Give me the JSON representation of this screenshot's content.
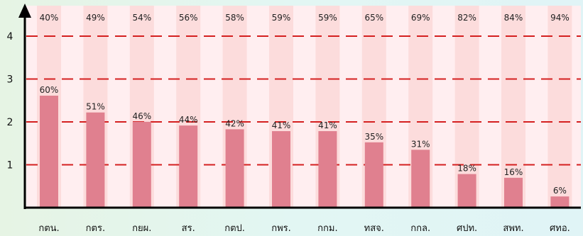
{
  "chart_data": {
    "type": "bar",
    "categories": [
      "กตน.",
      "กตร.",
      "กยผ.",
      "สร.",
      "กตป.",
      "กพร.",
      "กกม.",
      "ทสจ.",
      "กกล.",
      "ศปท.",
      "สพท.",
      "ศทอ."
    ],
    "series": [
      {
        "values": [
          60,
          51,
          46,
          44,
          42,
          41,
          41,
          35,
          31,
          18,
          16,
          6
        ]
      },
      {
        "values": [
          40,
          49,
          54,
          56,
          58,
          59,
          59,
          65,
          69,
          82,
          84,
          94
        ]
      }
    ],
    "value_labels": [
      "60%",
      "51%",
      "46%",
      "44%",
      "42%",
      "41%",
      "41%",
      "35%",
      "31%",
      "18%",
      "16%",
      "6%"
    ],
    "top_labels": [
      "40%",
      "49%",
      "54%",
      "56%",
      "58%",
      "59%",
      "59%",
      "65%",
      "69%",
      "82%",
      "84%",
      "94%"
    ],
    "yticks": [
      1,
      2,
      3,
      4
    ],
    "reference_lines": [
      1,
      2,
      3,
      4
    ],
    "ylim": [
      0,
      4.8
    ],
    "title": "",
    "xlabel": "",
    "ylabel": "",
    "colors": {
      "bar": "#e0808f",
      "background_band": "#fcdcdc",
      "plot_background": "#ffeef0",
      "reference_line": "#d42020",
      "axis": "#000000"
    }
  }
}
